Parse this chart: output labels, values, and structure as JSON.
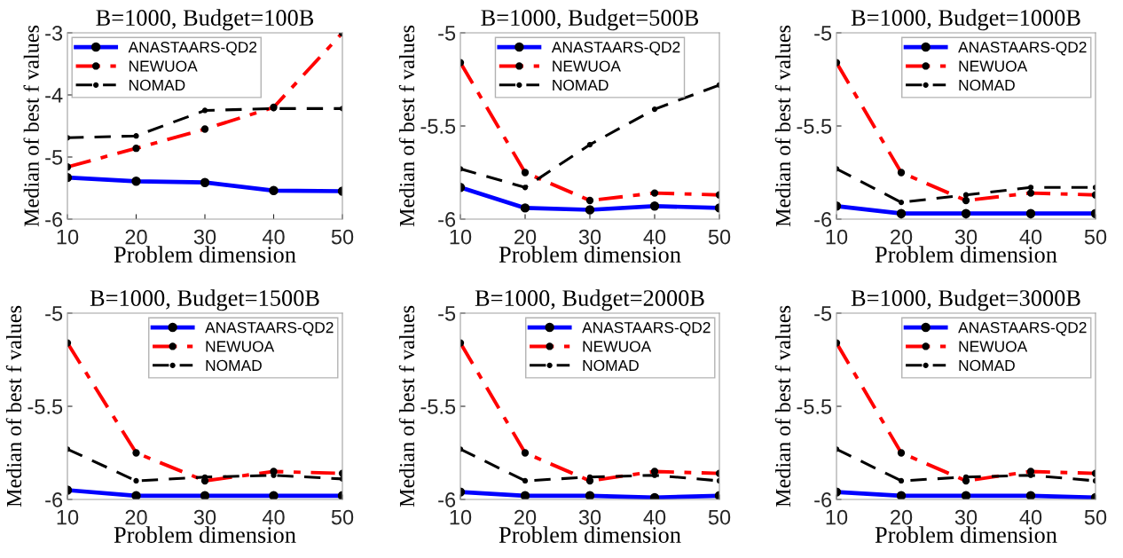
{
  "chart_data": [
    {
      "type": "line",
      "title": "B=1000, Budget=100B",
      "xlabel": "Problem dimension",
      "ylabel": "Median of best f values",
      "x": [
        10,
        20,
        30,
        40,
        50
      ],
      "xlim": [
        10,
        50
      ],
      "xticks": [
        10,
        20,
        30,
        40,
        50
      ],
      "ylim": [
        -6,
        -3
      ],
      "yticks": [
        -6,
        -5,
        -4,
        -3
      ],
      "legend": "top left",
      "marker": "circle",
      "grid": false,
      "series": [
        {
          "name": "ANASTAARS-QD2",
          "color": "#0000ff",
          "line_style": "solid",
          "values": [
            -5.33,
            -5.39,
            -5.41,
            -5.54,
            -5.55
          ]
        },
        {
          "name": "NEWUOA",
          "color": "#ff0000",
          "line_style": "dashdot",
          "values": [
            -5.16,
            -4.86,
            -4.55,
            -4.2,
            -3.0
          ]
        },
        {
          "name": "NOMAD",
          "color": "#000000",
          "line_style": "dashed",
          "values": [
            -4.69,
            -4.66,
            -4.25,
            -4.22,
            -4.22
          ]
        }
      ]
    },
    {
      "type": "line",
      "title": "B=1000, Budget=500B",
      "xlabel": "Problem dimension",
      "ylabel": "Median of best f values",
      "x": [
        10,
        20,
        30,
        40,
        50
      ],
      "xlim": [
        10,
        50
      ],
      "xticks": [
        10,
        20,
        30,
        40,
        50
      ],
      "ylim": [
        -6,
        -5
      ],
      "yticks": [
        -6,
        -5.5,
        -5
      ],
      "legend": "top",
      "marker": "circle",
      "grid": false,
      "series": [
        {
          "name": "ANASTAARS-QD2",
          "color": "#0000ff",
          "line_style": "solid",
          "values": [
            -5.83,
            -5.94,
            -5.95,
            -5.93,
            -5.94
          ]
        },
        {
          "name": "NEWUOA",
          "color": "#ff0000",
          "line_style": "dashdot",
          "values": [
            -5.16,
            -5.75,
            -5.9,
            -5.86,
            -5.87
          ]
        },
        {
          "name": "NOMAD",
          "color": "#000000",
          "line_style": "dashed",
          "values": [
            -5.73,
            -5.83,
            -5.6,
            -5.41,
            -5.28
          ]
        }
      ]
    },
    {
      "type": "line",
      "title": "B=1000, Budget=1000B",
      "xlabel": "Problem dimension",
      "ylabel": "Median of best f values",
      "x": [
        10,
        20,
        30,
        40,
        50
      ],
      "xlim": [
        10,
        50
      ],
      "xticks": [
        10,
        20,
        30,
        40,
        50
      ],
      "ylim": [
        -6,
        -5
      ],
      "yticks": [
        -6,
        -5.5,
        -5
      ],
      "legend": "top right",
      "marker": "circle",
      "grid": false,
      "series": [
        {
          "name": "ANASTAARS-QD2",
          "color": "#0000ff",
          "line_style": "solid",
          "values": [
            -5.93,
            -5.97,
            -5.97,
            -5.97,
            -5.97
          ]
        },
        {
          "name": "NEWUOA",
          "color": "#ff0000",
          "line_style": "dashdot",
          "values": [
            -5.16,
            -5.75,
            -5.9,
            -5.86,
            -5.87
          ]
        },
        {
          "name": "NOMAD",
          "color": "#000000",
          "line_style": "dashed",
          "values": [
            -5.73,
            -5.91,
            -5.87,
            -5.83,
            -5.83
          ]
        }
      ]
    },
    {
      "type": "line",
      "title": "B=1000, Budget=1500B",
      "xlabel": "Problem dimension",
      "ylabel": "Median of best f values",
      "x": [
        10,
        20,
        30,
        40,
        50
      ],
      "xlim": [
        10,
        50
      ],
      "xticks": [
        10,
        20,
        30,
        40,
        50
      ],
      "ylim": [
        -6,
        -5
      ],
      "yticks": [
        -6,
        -5.5,
        -5
      ],
      "legend": "top right",
      "marker": "circle",
      "grid": false,
      "series": [
        {
          "name": "ANASTAARS-QD2",
          "color": "#0000ff",
          "line_style": "solid",
          "values": [
            -5.95,
            -5.98,
            -5.98,
            -5.98,
            -5.98
          ]
        },
        {
          "name": "NEWUOA",
          "color": "#ff0000",
          "line_style": "dashdot",
          "values": [
            -5.16,
            -5.75,
            -5.9,
            -5.85,
            -5.86
          ]
        },
        {
          "name": "NOMAD",
          "color": "#000000",
          "line_style": "dashed",
          "values": [
            -5.73,
            -5.9,
            -5.88,
            -5.87,
            -5.89
          ]
        }
      ]
    },
    {
      "type": "line",
      "title": "B=1000, Budget=2000B",
      "xlabel": "Problem dimension",
      "ylabel": "Median of best f values",
      "x": [
        10,
        20,
        30,
        40,
        50
      ],
      "xlim": [
        10,
        50
      ],
      "xticks": [
        10,
        20,
        30,
        40,
        50
      ],
      "ylim": [
        -6,
        -5
      ],
      "yticks": [
        -6,
        -5.5,
        -5
      ],
      "legend": "top right",
      "marker": "circle",
      "grid": false,
      "series": [
        {
          "name": "ANASTAARS-QD2",
          "color": "#0000ff",
          "line_style": "solid",
          "values": [
            -5.96,
            -5.98,
            -5.98,
            -5.99,
            -5.98
          ]
        },
        {
          "name": "NEWUOA",
          "color": "#ff0000",
          "line_style": "dashdot",
          "values": [
            -5.16,
            -5.75,
            -5.9,
            -5.85,
            -5.86
          ]
        },
        {
          "name": "NOMAD",
          "color": "#000000",
          "line_style": "dashed",
          "values": [
            -5.73,
            -5.9,
            -5.88,
            -5.87,
            -5.9
          ]
        }
      ]
    },
    {
      "type": "line",
      "title": "B=1000, Budget=3000B",
      "xlabel": "Problem dimension",
      "ylabel": "Median of best f values",
      "x": [
        10,
        20,
        30,
        40,
        50
      ],
      "xlim": [
        10,
        50
      ],
      "xticks": [
        10,
        20,
        30,
        40,
        50
      ],
      "ylim": [
        -6,
        -5
      ],
      "yticks": [
        -6,
        -5.5,
        -5
      ],
      "legend": "top right",
      "marker": "circle",
      "grid": false,
      "series": [
        {
          "name": "ANASTAARS-QD2",
          "color": "#0000ff",
          "line_style": "solid",
          "values": [
            -5.96,
            -5.98,
            -5.98,
            -5.98,
            -5.99
          ]
        },
        {
          "name": "NEWUOA",
          "color": "#ff0000",
          "line_style": "dashdot",
          "values": [
            -5.16,
            -5.75,
            -5.9,
            -5.85,
            -5.86
          ]
        },
        {
          "name": "NOMAD",
          "color": "#000000",
          "line_style": "dashed",
          "values": [
            -5.73,
            -5.9,
            -5.88,
            -5.87,
            -5.9
          ]
        }
      ]
    }
  ]
}
